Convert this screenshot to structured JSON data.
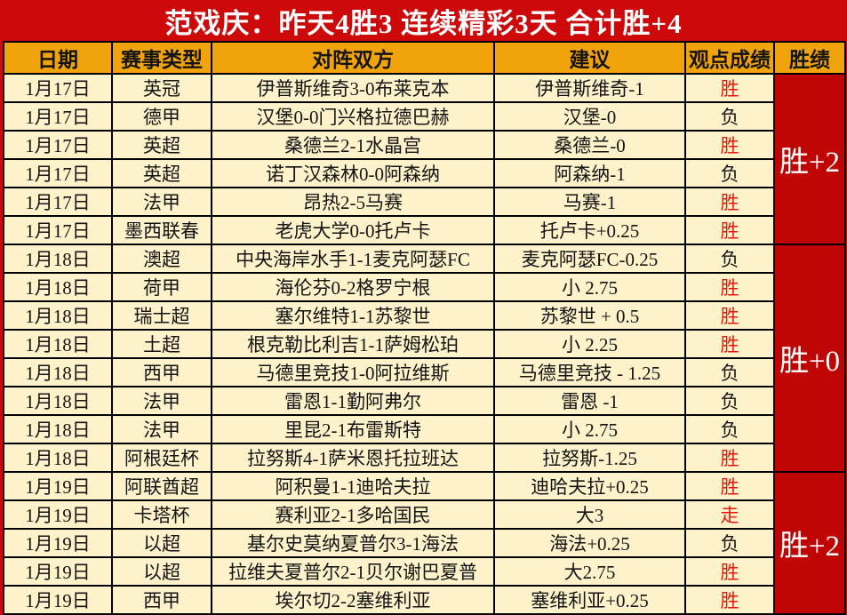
{
  "title": "范戏庆：昨天4胜3  连续精彩3天  合计胜+4",
  "colors": {
    "page_bg": "#ce0909",
    "header_bg": "#f0a30b",
    "cell_bg": "#fdf2ca",
    "record_bg": "#c00505",
    "win_color": "#e3170d",
    "push_color": "#e3170d",
    "lose_color": "#141414"
  },
  "table": {
    "headers": [
      "日期",
      "赛事类型",
      "对阵双方",
      "建议",
      "观点成绩",
      "胜绩"
    ],
    "groups": [
      {
        "record": "胜+2"
      },
      {
        "record": "胜+0"
      },
      {
        "record": "胜+2"
      }
    ],
    "rows": [
      {
        "date": "1月17日",
        "league": "英冠",
        "match": "伊普斯维奇3-0布莱克本",
        "tip": "伊普斯维奇-1",
        "result": "胜",
        "result_class": "win"
      },
      {
        "date": "1月17日",
        "league": "德甲",
        "match": "汉堡0-0门兴格拉德巴赫",
        "tip": "汉堡-0",
        "result": "负",
        "result_class": "lose"
      },
      {
        "date": "1月17日",
        "league": "英超",
        "match": "桑德兰2-1水晶宫",
        "tip": "桑德兰-0",
        "result": "胜",
        "result_class": "win"
      },
      {
        "date": "1月17日",
        "league": "英超",
        "match": "诺丁汉森林0-0阿森纳",
        "tip": "阿森纳-1",
        "result": "负",
        "result_class": "lose"
      },
      {
        "date": "1月17日",
        "league": "法甲",
        "match": "昂热2-5马赛",
        "tip": "马赛-1",
        "result": "胜",
        "result_class": "win"
      },
      {
        "date": "1月17日",
        "league": "墨西联春",
        "match": "老虎大学0-0托卢卡",
        "tip": "托卢卡+0.25",
        "result": "胜",
        "result_class": "win"
      },
      {
        "date": "1月18日",
        "league": "澳超",
        "match": "中央海岸水手1-1麦克阿瑟FC",
        "tip": "麦克阿瑟FC-0.25",
        "result": "负",
        "result_class": "lose"
      },
      {
        "date": "1月18日",
        "league": "荷甲",
        "match": "海伦芬0-2格罗宁根",
        "tip": "小 2.75",
        "result": "胜",
        "result_class": "win"
      },
      {
        "date": "1月18日",
        "league": "瑞士超",
        "match": "塞尔维特1-1苏黎世",
        "tip": "苏黎世 + 0.5",
        "result": "胜",
        "result_class": "win"
      },
      {
        "date": "1月18日",
        "league": "土超",
        "match": "根克勒比利吉1-1萨姆松珀",
        "tip": "小 2.25",
        "result": "胜",
        "result_class": "win"
      },
      {
        "date": "1月18日",
        "league": "西甲",
        "match": "马德里竞技1-0阿拉维斯",
        "tip": "马德里竞技 - 1.25",
        "result": "负",
        "result_class": "lose"
      },
      {
        "date": "1月18日",
        "league": "法甲",
        "match": "雷恩1-1勤阿弗尔",
        "tip": "雷恩 -1",
        "result": "负",
        "result_class": "lose"
      },
      {
        "date": "1月18日",
        "league": "法甲",
        "match": "里昆2-1布雷斯特",
        "tip": "小 2.75",
        "result": "负",
        "result_class": "lose"
      },
      {
        "date": "1月18日",
        "league": "阿根廷杯",
        "match": "拉努斯4-1萨米恩托拉班达",
        "tip": "拉努斯-1.25",
        "result": "胜",
        "result_class": "win"
      },
      {
        "date": "1月19日",
        "league": "阿联酋超",
        "match": "阿积曼1-1迪哈夫拉",
        "tip": "迪哈夫拉+0.25",
        "result": "胜",
        "result_class": "win"
      },
      {
        "date": "1月19日",
        "league": "卡塔杯",
        "match": "赛利亚2-1多哈国民",
        "tip": "大3",
        "result": "走",
        "result_class": "push"
      },
      {
        "date": "1月19日",
        "league": "以超",
        "match": "基尔史莫纳夏普尔3-1海法",
        "tip": "海法+0.25",
        "result": "负",
        "result_class": "lose"
      },
      {
        "date": "1月19日",
        "league": "以超",
        "match": "拉维夫夏普尔2-1贝尔谢巴夏普",
        "tip": "大2.75",
        "result": "胜",
        "result_class": "win"
      },
      {
        "date": "1月19日",
        "league": "西甲",
        "match": "埃尔切2-2塞维利亚",
        "tip": "塞维利亚+0.25",
        "result": "胜",
        "result_class": "win"
      }
    ]
  }
}
